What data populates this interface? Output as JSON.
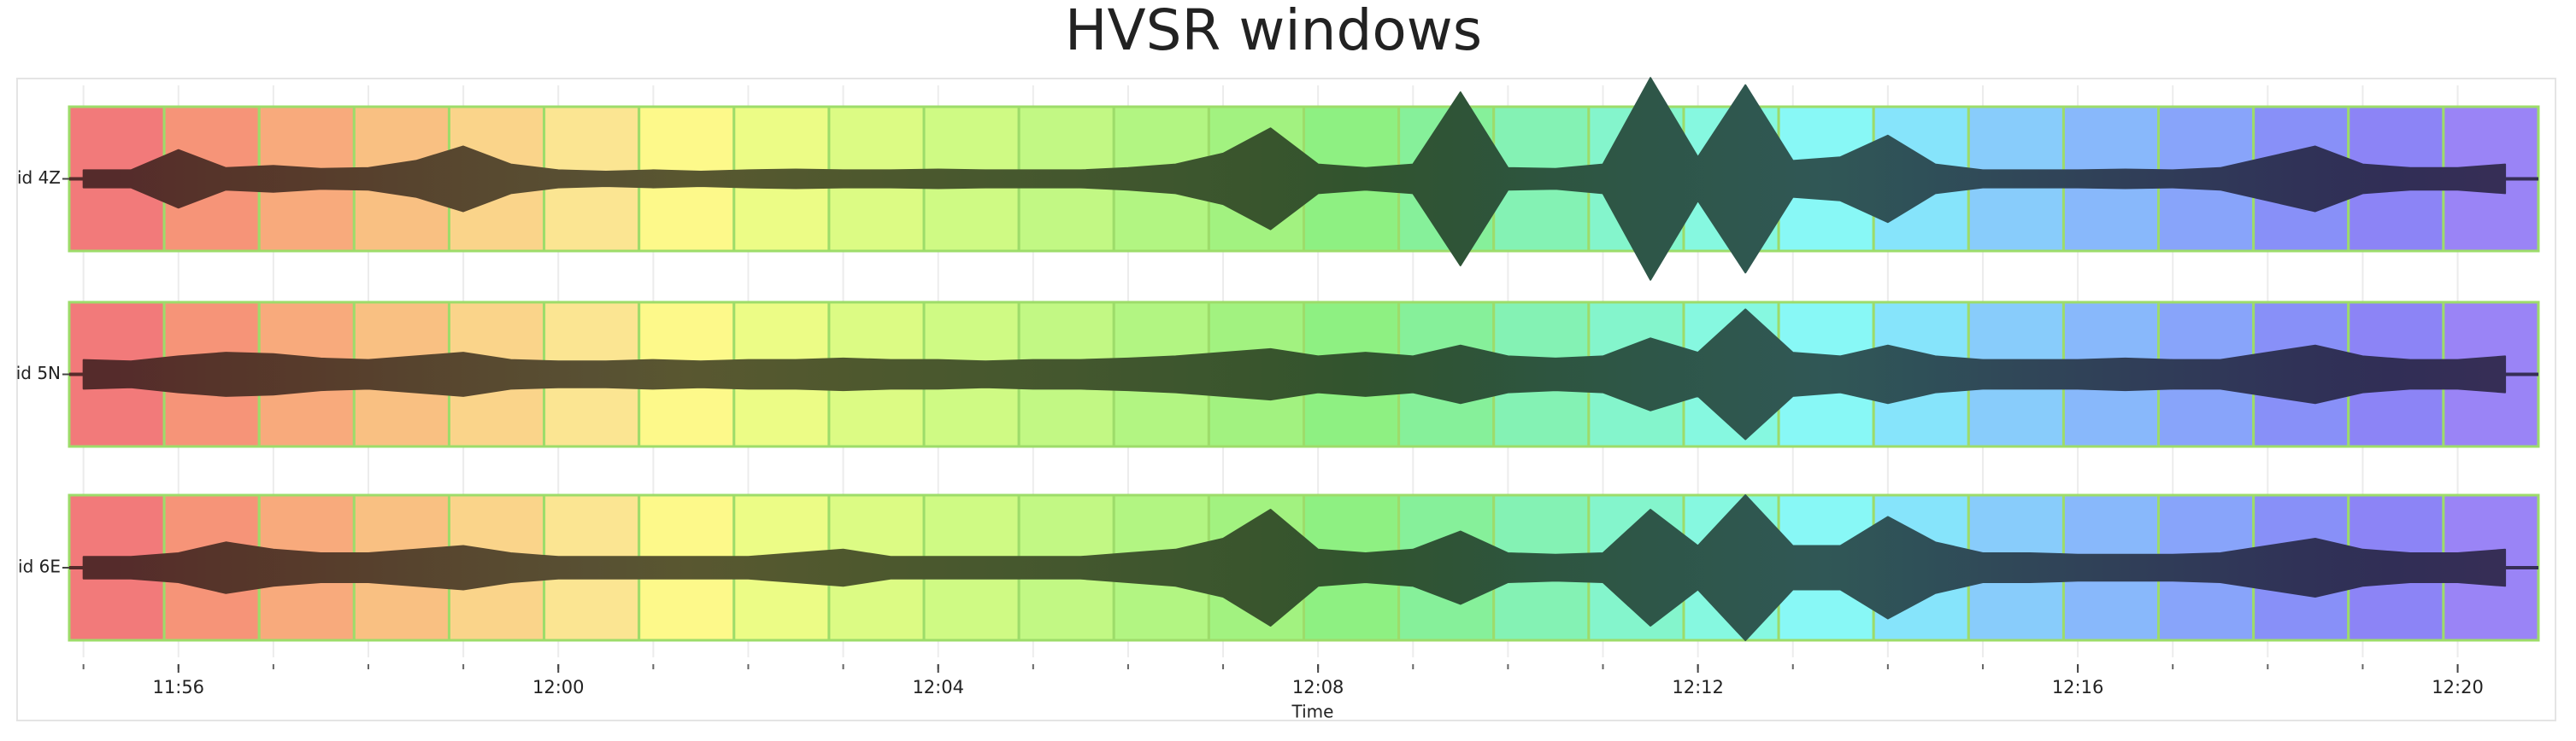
{
  "chart_data": {
    "type": "waveform-windows",
    "title": "HVSR windows",
    "xlabel": "Time",
    "xlim": [
      714.85,
      740.85
    ],
    "xticks": [
      {
        "value": 716,
        "label": "11:56"
      },
      {
        "value": 720,
        "label": "12:00"
      },
      {
        "value": 724,
        "label": "12:04"
      },
      {
        "value": 728,
        "label": "12:08"
      },
      {
        "value": 732,
        "label": "12:12"
      },
      {
        "value": 736,
        "label": "12:16"
      },
      {
        "value": 740,
        "label": "12:20"
      }
    ],
    "xticks_minor": [
      715,
      716,
      717,
      718,
      719,
      720,
      721,
      722,
      723,
      724,
      725,
      726,
      727,
      728,
      729,
      730,
      731,
      732,
      733,
      734,
      735,
      736,
      737,
      738,
      739,
      740
    ],
    "grid": true,
    "ylim": [
      -1,
      1
    ],
    "window_edge_color": "#9ddc6a",
    "windows": [
      {
        "start": 714.85,
        "end": 715.85,
        "color": "#f27a7a"
      },
      {
        "start": 715.85,
        "end": 716.85,
        "color": "#f69478"
      },
      {
        "start": 716.85,
        "end": 717.85,
        "color": "#f8aa7c"
      },
      {
        "start": 717.85,
        "end": 718.85,
        "color": "#f9c082"
      },
      {
        "start": 718.85,
        "end": 719.85,
        "color": "#fad48a"
      },
      {
        "start": 719.85,
        "end": 720.85,
        "color": "#fbe592"
      },
      {
        "start": 720.85,
        "end": 721.85,
        "color": "#fdf98a"
      },
      {
        "start": 721.85,
        "end": 722.85,
        "color": "#ecfc86"
      },
      {
        "start": 722.85,
        "end": 723.85,
        "color": "#dcfb84"
      },
      {
        "start": 723.85,
        "end": 724.85,
        "color": "#cffa84"
      },
      {
        "start": 724.85,
        "end": 725.85,
        "color": "#c2f884"
      },
      {
        "start": 725.85,
        "end": 726.85,
        "color": "#b2f582"
      },
      {
        "start": 726.85,
        "end": 727.85,
        "color": "#a2f280"
      },
      {
        "start": 727.85,
        "end": 728.85,
        "color": "#8ef082"
      },
      {
        "start": 728.85,
        "end": 729.85,
        "color": "#86f09a"
      },
      {
        "start": 729.85,
        "end": 730.85,
        "color": "#84f2b4"
      },
      {
        "start": 730.85,
        "end": 731.85,
        "color": "#84f5cc"
      },
      {
        "start": 731.85,
        "end": 732.85,
        "color": "#86f8e0"
      },
      {
        "start": 732.85,
        "end": 733.85,
        "color": "#88f8f6"
      },
      {
        "start": 733.85,
        "end": 734.85,
        "color": "#86e4fb"
      },
      {
        "start": 734.85,
        "end": 735.85,
        "color": "#88ccfb"
      },
      {
        "start": 735.85,
        "end": 736.85,
        "color": "#88b8fb"
      },
      {
        "start": 736.85,
        "end": 737.85,
        "color": "#88a4fa"
      },
      {
        "start": 737.85,
        "end": 738.85,
        "color": "#8890f8"
      },
      {
        "start": 738.85,
        "end": 739.85,
        "color": "#8c84f6"
      },
      {
        "start": 739.85,
        "end": 740.85,
        "color": "#9a84f6"
      }
    ],
    "x": [
      715,
      715.5,
      716,
      716.5,
      717,
      717.5,
      718,
      718.5,
      719,
      719.5,
      720,
      720.5,
      721,
      721.5,
      722,
      722.5,
      723,
      723.5,
      724,
      724.5,
      725,
      725.5,
      726,
      726.5,
      727,
      727.5,
      728,
      728.5,
      729,
      729.5,
      730,
      730.5,
      731,
      731.5,
      732,
      732.5,
      733,
      733.5,
      734,
      734.5,
      735,
      735.5,
      736,
      736.5,
      737,
      737.5,
      738,
      738.5,
      739,
      739.5,
      740,
      740.5
    ],
    "series": [
      {
        "name": "id 4Z",
        "values": [
          0.12,
          0.12,
          0.4,
          0.15,
          0.18,
          0.14,
          0.15,
          0.25,
          0.45,
          0.2,
          0.12,
          0.1,
          0.12,
          0.1,
          0.12,
          0.13,
          0.12,
          0.12,
          0.13,
          0.12,
          0.12,
          0.12,
          0.15,
          0.2,
          0.35,
          0.7,
          0.2,
          0.15,
          0.2,
          1.2,
          0.15,
          0.14,
          0.2,
          1.4,
          0.3,
          1.3,
          0.25,
          0.3,
          0.6,
          0.2,
          0.12,
          0.12,
          0.12,
          0.13,
          0.12,
          0.15,
          0.3,
          0.45,
          0.2,
          0.15,
          0.15,
          0.2
        ]
      },
      {
        "name": "id 5N",
        "values": [
          0.2,
          0.18,
          0.25,
          0.3,
          0.28,
          0.22,
          0.2,
          0.25,
          0.3,
          0.2,
          0.18,
          0.18,
          0.2,
          0.18,
          0.2,
          0.2,
          0.22,
          0.2,
          0.2,
          0.18,
          0.2,
          0.2,
          0.22,
          0.25,
          0.3,
          0.35,
          0.25,
          0.3,
          0.25,
          0.4,
          0.25,
          0.22,
          0.25,
          0.5,
          0.3,
          0.9,
          0.3,
          0.25,
          0.4,
          0.25,
          0.2,
          0.2,
          0.2,
          0.22,
          0.2,
          0.2,
          0.3,
          0.4,
          0.25,
          0.2,
          0.2,
          0.25
        ]
      },
      {
        "name": "id 6E",
        "values": [
          0.15,
          0.15,
          0.2,
          0.35,
          0.25,
          0.2,
          0.2,
          0.25,
          0.3,
          0.2,
          0.15,
          0.15,
          0.15,
          0.15,
          0.15,
          0.2,
          0.25,
          0.15,
          0.15,
          0.15,
          0.15,
          0.15,
          0.2,
          0.25,
          0.4,
          0.8,
          0.25,
          0.2,
          0.25,
          0.5,
          0.2,
          0.18,
          0.2,
          0.8,
          0.3,
          1.0,
          0.3,
          0.3,
          0.7,
          0.35,
          0.2,
          0.2,
          0.18,
          0.18,
          0.18,
          0.2,
          0.3,
          0.4,
          0.25,
          0.2,
          0.2,
          0.25
        ]
      }
    ]
  }
}
